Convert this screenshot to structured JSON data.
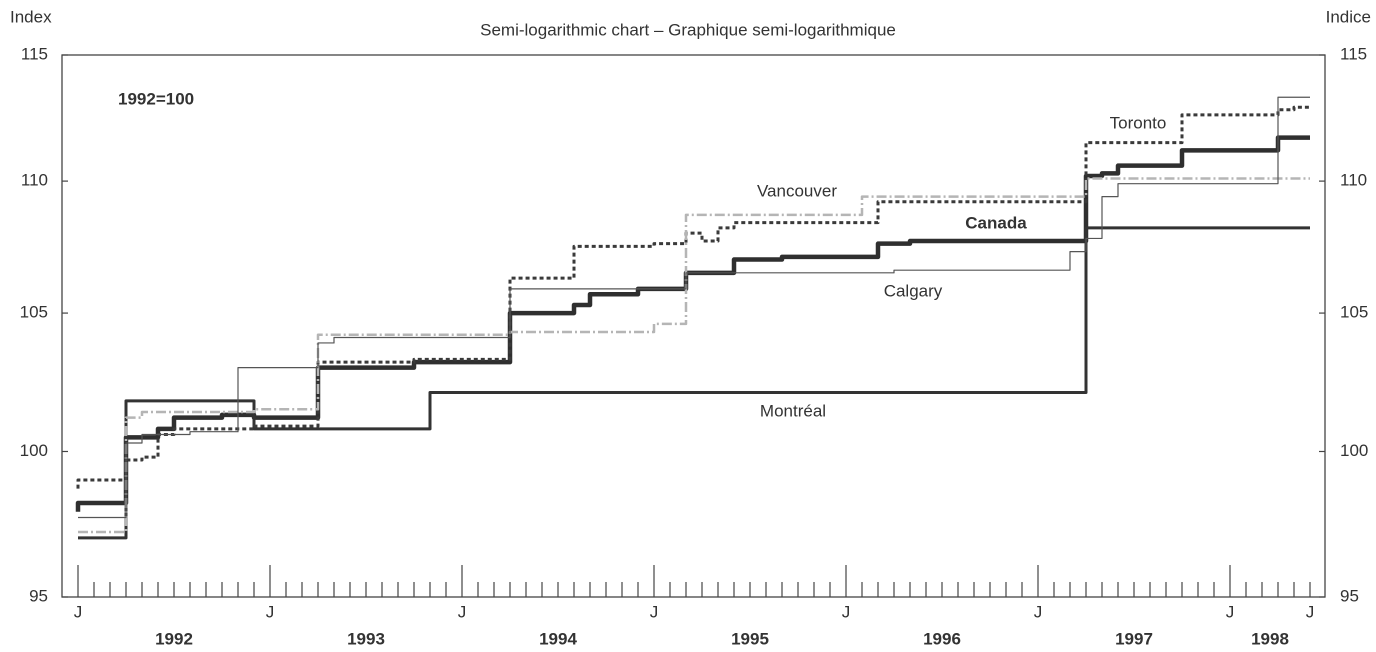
{
  "chart_data": {
    "type": "line",
    "title": "Semi-logarithmic chart – Graphique semi-logarithmique",
    "y_label": "Index",
    "y2_label": "Indice",
    "annotation": "1992=100",
    "log_scale": true,
    "step": true,
    "ylim": [
      95,
      115
    ],
    "yticks": [
      95,
      100,
      105,
      110,
      115
    ],
    "y2lim": [
      95,
      115
    ],
    "y2ticks": [
      95,
      100,
      105,
      110,
      115
    ],
    "x": [
      "1992-01",
      "1992-02",
      "1992-03",
      "1992-04",
      "1992-05",
      "1992-06",
      "1992-07",
      "1992-08",
      "1992-09",
      "1992-10",
      "1992-11",
      "1992-12",
      "1993-01",
      "1993-02",
      "1993-03",
      "1993-04",
      "1993-05",
      "1993-06",
      "1993-07",
      "1993-08",
      "1993-09",
      "1993-10",
      "1993-11",
      "1993-12",
      "1994-01",
      "1994-02",
      "1994-03",
      "1994-04",
      "1994-05",
      "1994-06",
      "1994-07",
      "1994-08",
      "1994-09",
      "1994-10",
      "1994-11",
      "1994-12",
      "1995-01",
      "1995-02",
      "1995-03",
      "1995-04",
      "1995-05",
      "1995-06",
      "1995-07",
      "1995-08",
      "1995-09",
      "1995-10",
      "1995-11",
      "1995-12",
      "1996-01",
      "1996-02",
      "1996-03",
      "1996-04",
      "1996-05",
      "1996-06",
      "1996-07",
      "1996-08",
      "1996-09",
      "1996-10",
      "1996-11",
      "1996-12",
      "1997-01",
      "1997-02",
      "1997-03",
      "1997-04",
      "1997-05",
      "1997-06",
      "1997-07",
      "1997-08",
      "1997-09",
      "1997-10",
      "1997-11",
      "1997-12",
      "1998-01",
      "1998-02",
      "1998-03",
      "1998-04",
      "1998-05",
      "1998-06"
    ],
    "xticks": [
      {
        "value": "1992-01",
        "label": "J"
      },
      {
        "value": "1993-01",
        "label": "J"
      },
      {
        "value": "1994-01",
        "label": "J"
      },
      {
        "value": "1995-01",
        "label": "J"
      },
      {
        "value": "1996-01",
        "label": "J"
      },
      {
        "value": "1997-01",
        "label": "J"
      },
      {
        "value": "1998-01",
        "label": "J"
      },
      {
        "value": "1998-06",
        "label": "J"
      }
    ],
    "years": [
      "1992",
      "1993",
      "1994",
      "1995",
      "1996",
      "1997",
      "1998"
    ],
    "series": [
      {
        "name": "Canada",
        "color": "#2f2f2f",
        "style": "bold",
        "values": [
          97.9,
          98.2,
          98.2,
          98.2,
          100.5,
          100.5,
          100.8,
          101.2,
          101.2,
          101.2,
          101.3,
          101.3,
          101.2,
          101.2,
          101.2,
          101.2,
          103.0,
          103.0,
          103.0,
          103.0,
          103.0,
          103.0,
          103.2,
          103.2,
          103.2,
          103.2,
          103.2,
          103.2,
          105.0,
          105.0,
          105.0,
          105.0,
          105.3,
          105.7,
          105.7,
          105.7,
          105.9,
          105.9,
          105.9,
          106.5,
          106.5,
          106.5,
          107.0,
          107.0,
          107.0,
          107.1,
          107.1,
          107.1,
          107.1,
          107.1,
          107.1,
          107.6,
          107.6,
          107.7,
          107.7,
          107.7,
          107.7,
          107.7,
          107.7,
          107.7,
          107.7,
          107.7,
          107.7,
          107.7,
          110.2,
          110.3,
          110.6,
          110.6,
          110.6,
          110.6,
          111.2,
          111.2,
          111.2,
          111.2,
          111.2,
          111.2,
          111.7,
          111.7
        ]
      },
      {
        "name": "Montréal",
        "color": "#333333",
        "style": "solid",
        "values": [
          97.0,
          97.0,
          97.0,
          97.0,
          101.8,
          101.8,
          101.8,
          101.8,
          101.8,
          101.8,
          101.8,
          101.8,
          100.8,
          100.8,
          100.8,
          100.8,
          100.8,
          100.8,
          100.8,
          100.8,
          100.8,
          100.8,
          100.8,
          102.1,
          102.1,
          102.1,
          102.1,
          102.1,
          102.1,
          102.1,
          102.1,
          102.1,
          102.1,
          102.1,
          102.1,
          102.1,
          102.1,
          102.1,
          102.1,
          102.1,
          102.1,
          102.1,
          102.1,
          102.1,
          102.1,
          102.1,
          102.1,
          102.1,
          102.1,
          102.1,
          102.1,
          102.1,
          102.1,
          102.1,
          102.1,
          102.1,
          102.1,
          102.1,
          102.1,
          102.1,
          102.1,
          102.1,
          102.1,
          102.1,
          108.2,
          108.2,
          108.2,
          108.2,
          108.2,
          108.2,
          108.2,
          108.2,
          108.2,
          108.2,
          108.2,
          108.2,
          108.2,
          108.2
        ]
      },
      {
        "name": "Toronto",
        "color": "#3a3a3a",
        "style": "dotted",
        "values": [
          98.7,
          99.0,
          99.0,
          99.0,
          99.7,
          99.8,
          100.6,
          100.8,
          100.8,
          100.8,
          100.8,
          100.8,
          100.9,
          100.9,
          100.9,
          100.9,
          103.2,
          103.2,
          103.2,
          103.2,
          103.2,
          103.2,
          103.3,
          103.3,
          103.3,
          103.3,
          103.3,
          103.3,
          106.3,
          106.3,
          106.3,
          106.3,
          107.5,
          107.5,
          107.5,
          107.5,
          107.5,
          107.6,
          107.6,
          108.0,
          107.7,
          108.2,
          108.4,
          108.4,
          108.4,
          108.4,
          108.4,
          108.4,
          108.4,
          108.4,
          108.4,
          109.2,
          109.2,
          109.2,
          109.2,
          109.2,
          109.2,
          109.2,
          109.2,
          109.2,
          109.2,
          109.2,
          109.2,
          109.2,
          111.5,
          111.5,
          111.5,
          111.5,
          111.5,
          111.5,
          112.6,
          112.6,
          112.6,
          112.6,
          112.6,
          112.6,
          112.8,
          112.9
        ]
      },
      {
        "name": "Vancouver",
        "color": "#b5b5b5",
        "style": "dashdot",
        "values": [
          97.2,
          97.2,
          97.2,
          97.2,
          101.2,
          101.4,
          101.4,
          101.4,
          101.4,
          101.4,
          101.4,
          101.4,
          101.5,
          101.5,
          101.5,
          101.5,
          104.2,
          104.2,
          104.2,
          104.2,
          104.2,
          104.2,
          104.2,
          104.2,
          104.2,
          104.2,
          104.2,
          104.2,
          104.3,
          104.3,
          104.3,
          104.3,
          104.3,
          104.3,
          104.3,
          104.3,
          104.3,
          104.6,
          104.6,
          108.7,
          108.7,
          108.7,
          108.7,
          108.7,
          108.7,
          108.7,
          108.7,
          108.7,
          108.7,
          108.7,
          109.4,
          109.4,
          109.4,
          109.4,
          109.4,
          109.4,
          109.4,
          109.4,
          109.4,
          109.4,
          109.4,
          109.4,
          109.4,
          109.4,
          110.1,
          110.1,
          110.1,
          110.1,
          110.1,
          110.1,
          110.1,
          110.1,
          110.1,
          110.1,
          110.1,
          110.1,
          110.1,
          110.1
        ]
      },
      {
        "name": "Calgary",
        "color": "#555555",
        "style": "thin",
        "values": [
          97.7,
          97.7,
          97.7,
          97.7,
          100.3,
          100.6,
          100.6,
          100.6,
          100.7,
          100.7,
          100.7,
          103.0,
          103.0,
          103.0,
          103.0,
          103.0,
          103.9,
          104.1,
          104.1,
          104.1,
          104.1,
          104.1,
          104.1,
          104.1,
          104.1,
          104.1,
          104.1,
          104.1,
          105.9,
          105.9,
          105.9,
          105.9,
          105.9,
          105.9,
          105.9,
          105.9,
          105.9,
          105.9,
          105.9,
          106.5,
          106.5,
          106.5,
          106.5,
          106.5,
          106.5,
          106.5,
          106.5,
          106.5,
          106.5,
          106.5,
          106.5,
          106.5,
          106.6,
          106.6,
          106.6,
          106.6,
          106.6,
          106.6,
          106.6,
          106.6,
          106.6,
          106.6,
          106.6,
          107.3,
          107.8,
          109.4,
          109.9,
          109.9,
          109.9,
          109.9,
          109.9,
          109.9,
          109.9,
          109.9,
          109.9,
          109.9,
          113.3,
          113.3
        ]
      }
    ]
  }
}
